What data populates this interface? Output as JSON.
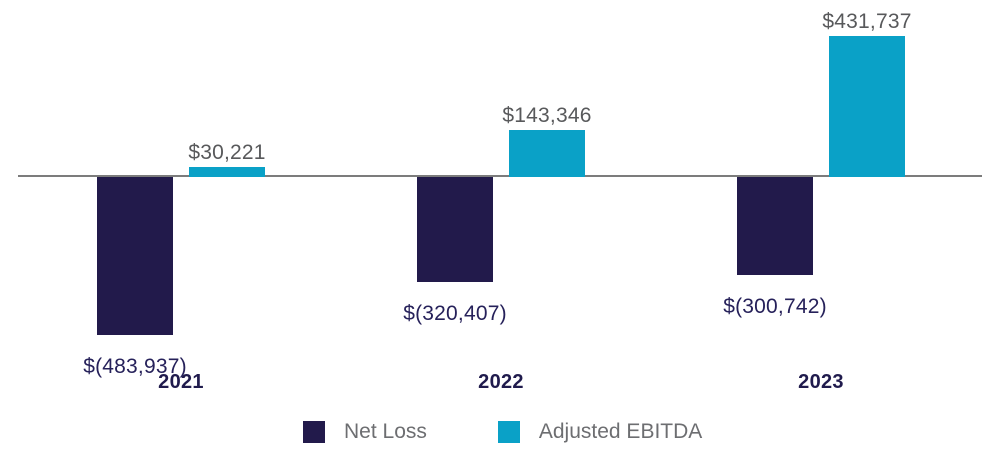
{
  "chart_data": {
    "type": "bar",
    "title": "",
    "xlabel": "",
    "ylabel": "",
    "categories": [
      "2021",
      "2022",
      "2023"
    ],
    "series": [
      {
        "name": "Net Loss",
        "color": "#221A4B",
        "values": [
          -483937,
          -320407,
          -300742
        ],
        "labels": [
          "$(483,937)",
          "$(320,407)",
          "$(300,742)"
        ]
      },
      {
        "name": "Adjusted EBITDA",
        "color": "#0AA1C7",
        "values": [
          30221,
          143346,
          431737
        ],
        "labels": [
          "$30,221",
          "$143,346",
          "$431,737"
        ]
      }
    ],
    "ylim": [
      -520000,
      470000
    ],
    "grid": false,
    "legend_position": "bottom"
  },
  "legend": {
    "items": [
      {
        "label": "Net Loss",
        "color": "#221A4B"
      },
      {
        "label": "Adjusted EBITDA",
        "color": "#0AA1C7"
      }
    ]
  },
  "colors": {
    "background": "#FFFFFF",
    "axis_line": "#7C7C7C",
    "positive_label": "#58595B",
    "negative_label": "#26215A",
    "year_label": "#201B4D",
    "legend_text": "#6D6E71"
  }
}
